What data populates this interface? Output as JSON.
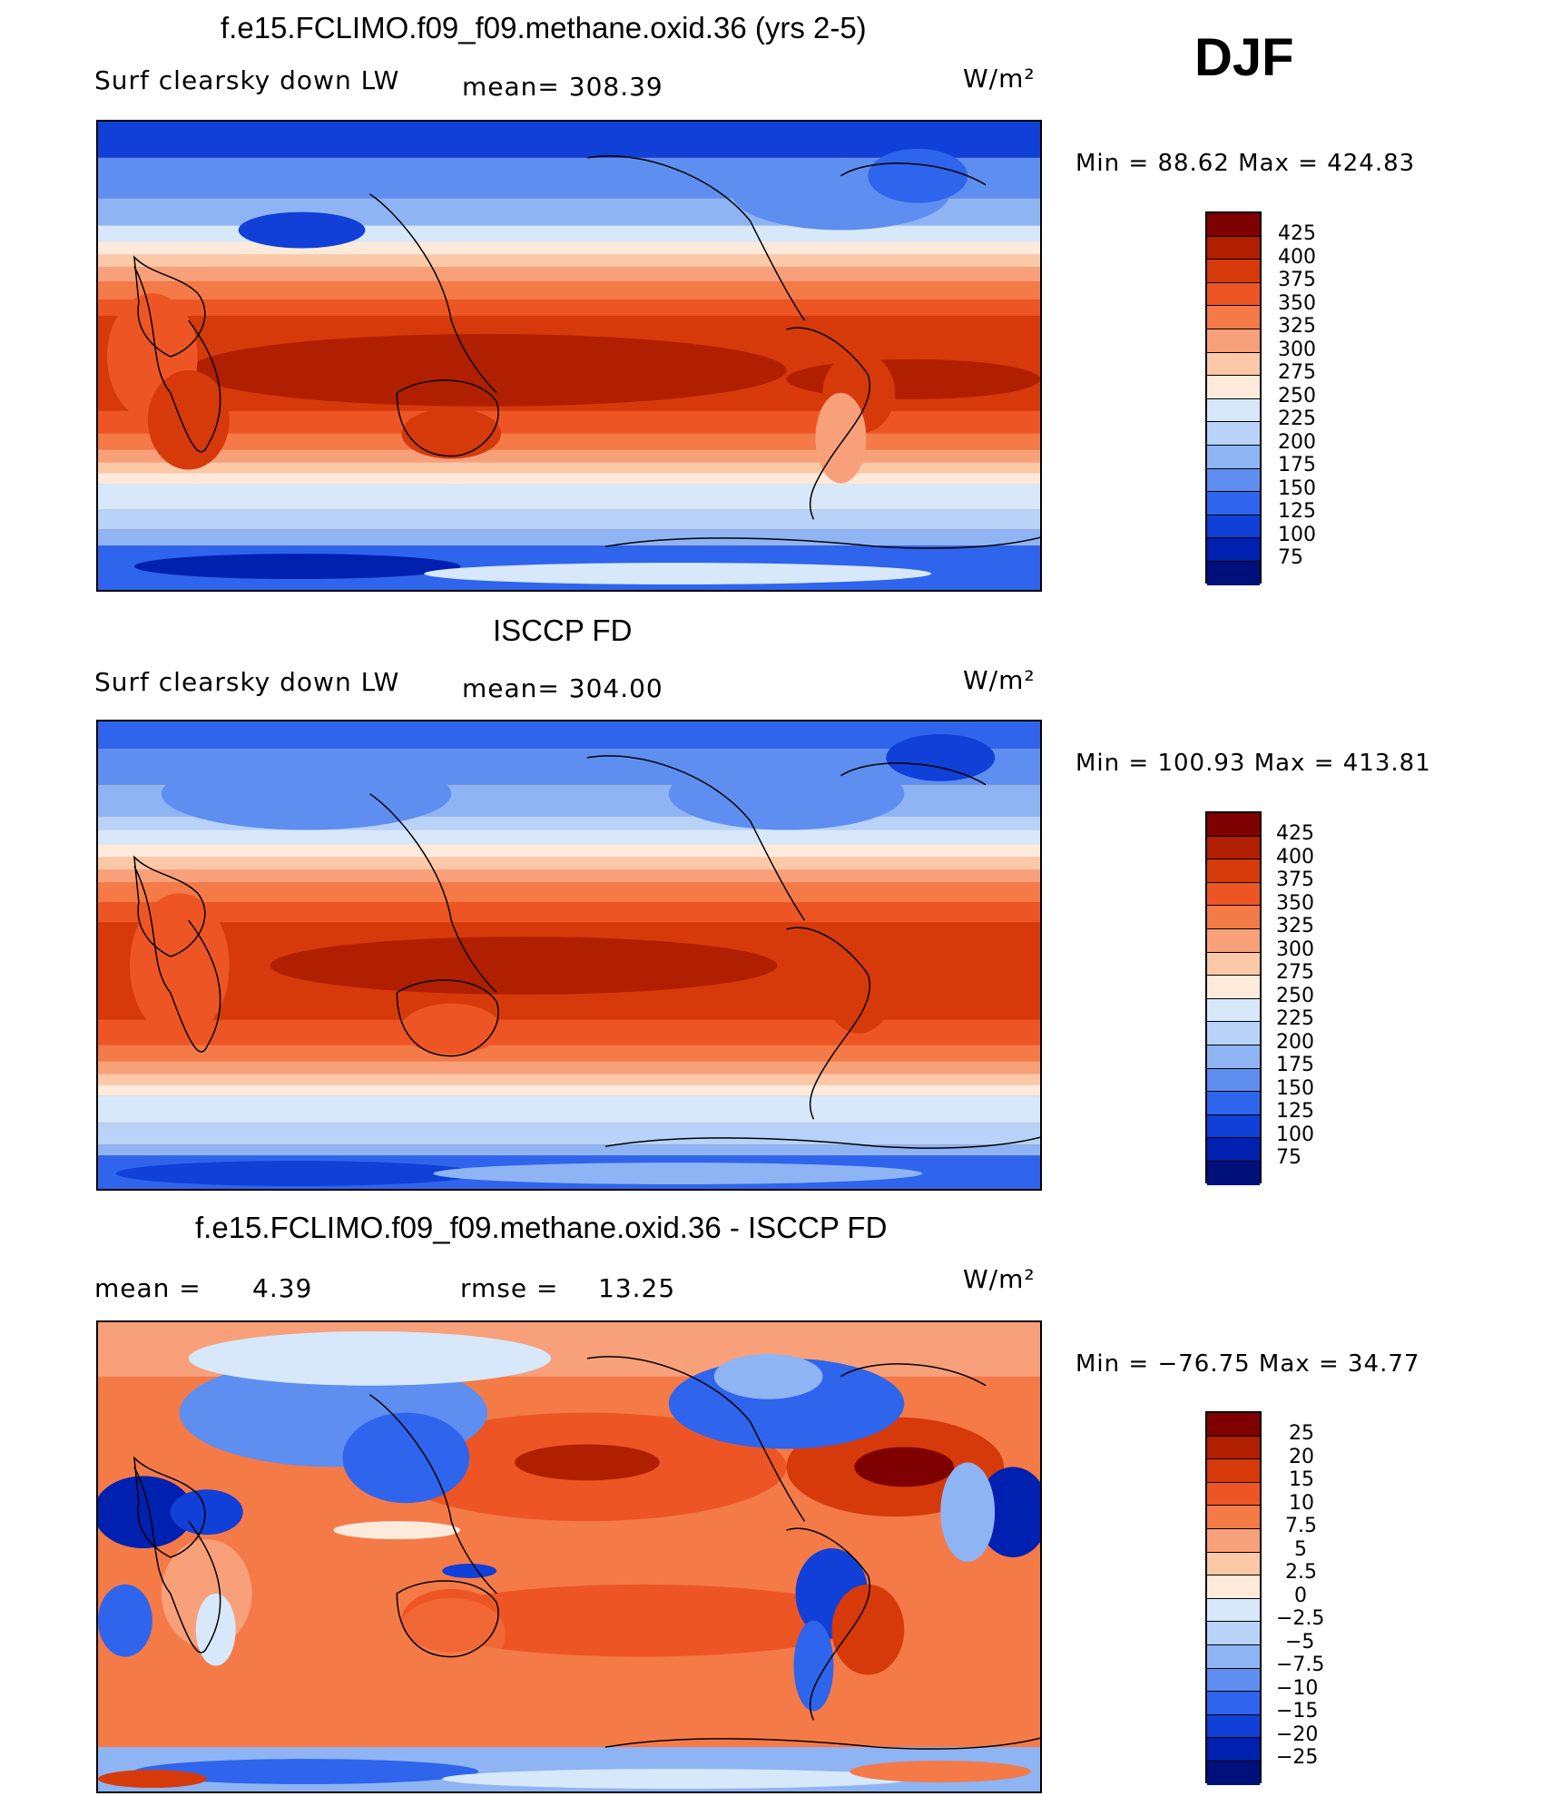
{
  "season": "DJF",
  "panels": [
    {
      "title": "f.e15.FCLIMO.f09_f09.methane.oxid.36 (yrs 2-5)",
      "left_label": "Surf clearsky down LW",
      "center_label": "mean= 308.39",
      "units": "W/m²",
      "minmax": "Min =  88.62 Max = 424.83",
      "colorbar_labels": [
        "425",
        "400",
        "375",
        "350",
        "325",
        "300",
        "275",
        "250",
        "225",
        "200",
        "175",
        "150",
        "125",
        "100",
        "75"
      ]
    },
    {
      "title": "ISCCP FD",
      "left_label": "Surf clearsky down LW",
      "center_label": "mean= 304.00",
      "units": "W/m²",
      "minmax": "Min = 100.93 Max = 413.81",
      "colorbar_labels": [
        "425",
        "400",
        "375",
        "350",
        "325",
        "300",
        "275",
        "250",
        "225",
        "200",
        "175",
        "150",
        "125",
        "100",
        "75"
      ]
    },
    {
      "title": "f.e15.FCLIMO.f09_f09.methane.oxid.36 - ISCCP FD",
      "left_label": "mean =",
      "left_value": "4.39",
      "center_label": "rmse =",
      "center_value": "13.25",
      "units": "W/m²",
      "minmax": "Min = −76.75 Max =  34.77",
      "colorbar_labels": [
        "25",
        "20",
        "15",
        "10",
        "7.5",
        "5",
        "2.5",
        "0",
        "−2.5",
        "−5",
        "−7.5",
        "−10",
        "−15",
        "−20",
        "−25"
      ]
    }
  ],
  "colors": {
    "abs_scale": [
      "#7f0000",
      "#b01f00",
      "#d63a0a",
      "#ee5524",
      "#f47a48",
      "#f8a07a",
      "#fbc8a8",
      "#fdeada",
      "#d6e8fa",
      "#b8d2f8",
      "#8eb4f4",
      "#5e8ef0",
      "#2f64ec",
      "#1040d8",
      "#0020b0",
      "#00107a"
    ],
    "diff_scale": [
      "#7f0000",
      "#b01f00",
      "#d63a0a",
      "#ee5524",
      "#f47a48",
      "#f8a07a",
      "#fbc8a8",
      "#fdeada",
      "#d6e8fa",
      "#b8d2f8",
      "#8eb4f4",
      "#5e8ef0",
      "#2f64ec",
      "#1040d8",
      "#0020b0",
      "#00107a"
    ]
  }
}
